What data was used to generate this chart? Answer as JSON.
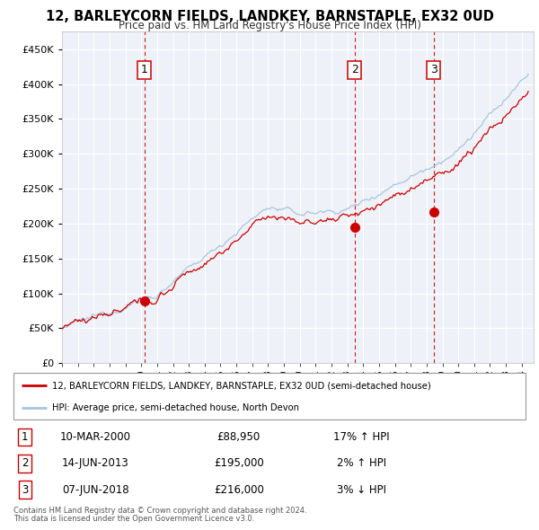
{
  "title": "12, BARLEYCORN FIELDS, LANDKEY, BARNSTAPLE, EX32 0UD",
  "subtitle": "Price paid vs. HM Land Registry's House Price Index (HPI)",
  "legend_line1": "12, BARLEYCORN FIELDS, LANDKEY, BARNSTAPLE, EX32 0UD (semi-detached house)",
  "legend_line2": "HPI: Average price, semi-detached house, North Devon",
  "footer1": "Contains HM Land Registry data © Crown copyright and database right 2024.",
  "footer2": "This data is licensed under the Open Government Licence v3.0.",
  "sales": [
    {
      "label": "1",
      "date": "10-MAR-2000",
      "price": 88950,
      "hpi_text": "17% ↑ HPI",
      "x": 2000.19
    },
    {
      "label": "2",
      "date": "14-JUN-2013",
      "price": 195000,
      "hpi_text": "2% ↑ HPI",
      "x": 2013.45
    },
    {
      "label": "3",
      "date": "07-JUN-2018",
      "price": 216000,
      "hpi_text": "3% ↓ HPI",
      "x": 2018.44
    }
  ],
  "hpi_color": "#a8c4e0",
  "price_color": "#cc0000",
  "sale_marker_color": "#cc0000",
  "vline_color": "#cc0000",
  "background_color": "#eef2f8",
  "plot_bg": "#eef2f8",
  "grid_color": "#ffffff",
  "ylim": [
    0,
    475000
  ],
  "xlim": [
    1995.0,
    2024.75
  ],
  "yticks": [
    0,
    50000,
    100000,
    150000,
    200000,
    250000,
    300000,
    350000,
    400000,
    450000
  ]
}
